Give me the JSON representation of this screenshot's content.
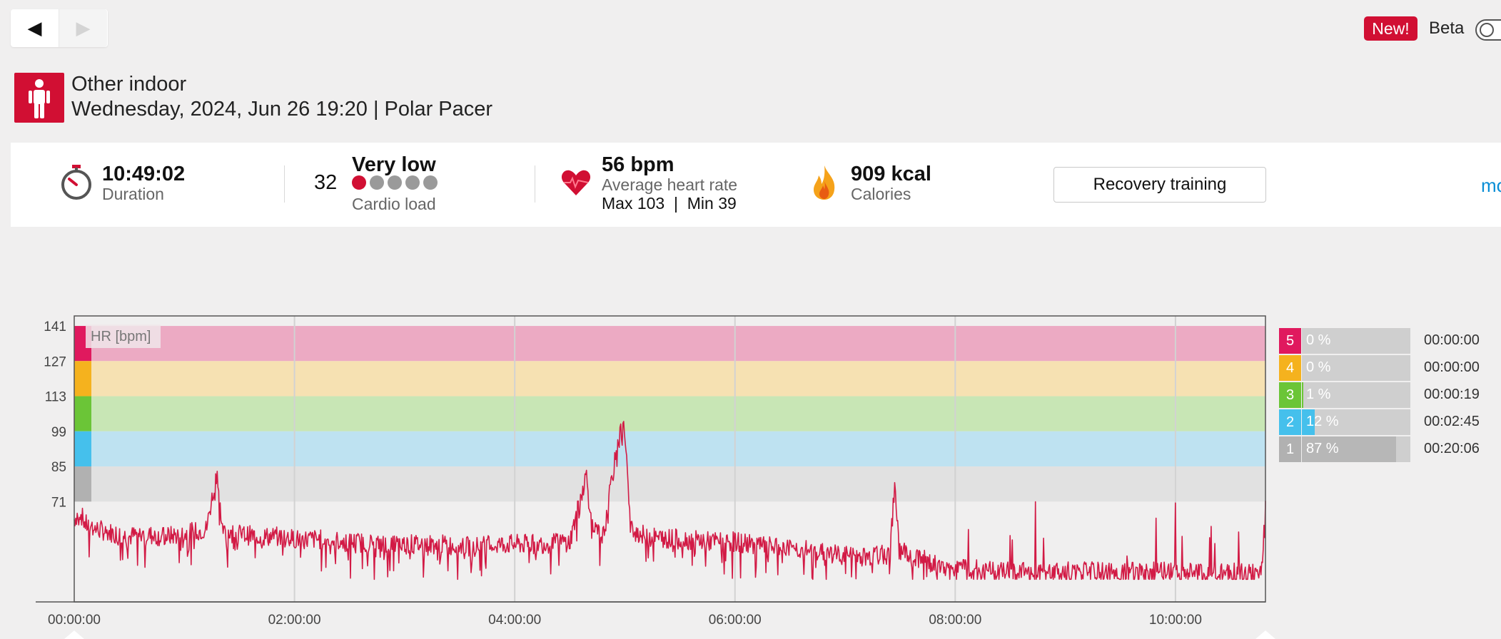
{
  "nav": {
    "back_icon": "◀",
    "forward_icon": "▶"
  },
  "header": {
    "new_badge": "New!",
    "beta_label": "Beta"
  },
  "sport": {
    "name": "Other indoor",
    "subtitle": "Wednesday, 2024, Jun 26 19:20 | Polar Pacer",
    "accent": "#d10f33"
  },
  "summary": {
    "duration_value": "10:49:02",
    "duration_label": "Duration",
    "cardio_load_number": "32",
    "cardio_load_level": "Very low",
    "cardio_load_label": "Cardio load",
    "cardio_load_dots": 1,
    "avg_hr_value": "56 bpm",
    "avg_hr_label": "Average heart rate",
    "max_min_text": "Max 103  |  Min 39",
    "calories_value": "909 kcal",
    "calories_label": "Calories",
    "training_benefit_button": "Recovery training",
    "more_link": "mo"
  },
  "chart_data": {
    "type": "line",
    "ylabel": "HR [bpm]",
    "y_ticks": [
      141,
      127,
      113,
      99,
      85,
      71
    ],
    "x_ticks": [
      "00:00:00",
      "02:00:00",
      "04:00:00",
      "06:00:00",
      "08:00:00",
      "10:00:00"
    ],
    "xlim_seconds": [
      0,
      38942
    ],
    "ylim": [
      31,
      145
    ],
    "hr_zones": [
      {
        "zone": 5,
        "from": 127,
        "to": 141,
        "color": "#ecaac3"
      },
      {
        "zone": 4,
        "from": 113,
        "to": 127,
        "color": "#f6e1b2"
      },
      {
        "zone": 3,
        "from": 99,
        "to": 113,
        "color": "#c8e6b5"
      },
      {
        "zone": 2,
        "from": 85,
        "to": 99,
        "color": "#bee2f1"
      },
      {
        "zone": 1,
        "from": 71,
        "to": 85,
        "color": "#e1e1e1"
      }
    ],
    "series": [
      {
        "color": "#d21a45",
        "t_hours": [
          0,
          0.05,
          0.1,
          0.2,
          0.3,
          0.4,
          0.5,
          0.6,
          0.8,
          1.0,
          1.2,
          1.3,
          1.32,
          1.35,
          1.5,
          1.7,
          1.9,
          2.0,
          2.2,
          2.5,
          2.8,
          3.0,
          3.3,
          3.6,
          3.9,
          4.2,
          4.5,
          4.65,
          4.7,
          4.8,
          4.95,
          5.0,
          5.05,
          5.2,
          5.5,
          5.8,
          6.0,
          6.3,
          6.6,
          6.9,
          7.2,
          7.4,
          7.45,
          7.5,
          7.7,
          7.8,
          8.0,
          8.2,
          8.5,
          8.8,
          9.1,
          9.4,
          9.6,
          9.9,
          10.2,
          10.5,
          10.7,
          10.78,
          10.82
        ],
        "bpm": [
          64,
          67,
          62,
          60,
          59,
          58,
          57,
          58,
          57,
          58,
          60,
          84,
          70,
          59,
          58,
          57,
          57,
          56,
          56,
          55,
          54,
          54,
          54,
          53,
          54,
          54,
          55,
          82,
          60,
          57,
          98,
          101,
          60,
          57,
          56,
          55,
          55,
          53,
          52,
          50,
          49,
          50,
          75,
          52,
          48,
          46,
          44,
          44,
          43,
          43,
          43,
          43,
          43,
          43,
          43,
          43,
          43,
          43,
          72
        ]
      }
    ]
  },
  "zone_stats": [
    {
      "zone": "5",
      "percent_text": "0 %",
      "percent": 0,
      "time": "00:00:00",
      "color": "#e0195e"
    },
    {
      "zone": "4",
      "percent_text": "0 %",
      "percent": 0,
      "time": "00:00:00",
      "color": "#f5b21e"
    },
    {
      "zone": "3",
      "percent_text": "1 %",
      "percent": 1,
      "time": "00:00:19",
      "color": "#6bc537"
    },
    {
      "zone": "2",
      "percent_text": "12 %",
      "percent": 12,
      "time": "00:02:45",
      "color": "#45c0ec"
    },
    {
      "zone": "1",
      "percent_text": "87 %",
      "percent": 87,
      "time": "00:20:06",
      "color": "#b1b1b1"
    }
  ]
}
